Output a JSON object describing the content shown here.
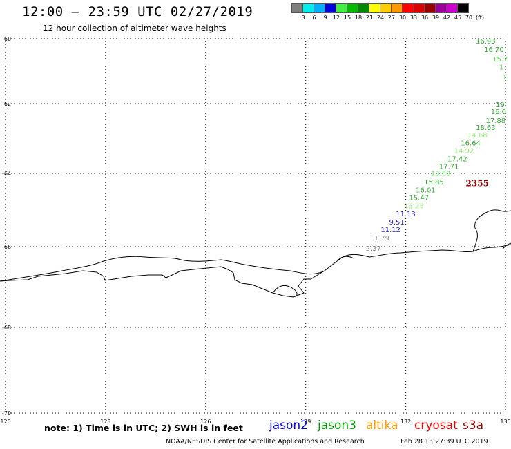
{
  "header": {
    "title": "12:00 – 23:59 UTC 02/27/2019",
    "subtitle": "12 hour collection of altimeter wave heights"
  },
  "colorbar": {
    "colors": [
      "#7f7f7f",
      "#00eeee",
      "#00b0ff",
      "#0000dd",
      "#44ee44",
      "#00bb00",
      "#008800",
      "#ffff00",
      "#ffcc00",
      "#ff9900",
      "#ff0000",
      "#dd0000",
      "#990000",
      "#990099",
      "#cc00cc",
      "#000000"
    ],
    "labels": [
      "3",
      "6",
      "9",
      "12",
      "15",
      "18",
      "21",
      "24",
      "27",
      "30",
      "33",
      "36",
      "39",
      "42",
      "45",
      "70",
      "(ft)"
    ]
  },
  "map": {
    "lat_ticks": [
      "-60",
      "-62",
      "-64",
      "-66",
      "-68",
      "-70"
    ],
    "lon_ticks": [
      "120",
      "123",
      "126",
      "129",
      "132",
      "135"
    ],
    "annotations": [
      {
        "text": "16.93",
        "lon": 134.1,
        "lat": -60.15,
        "color": "#33aa33"
      },
      {
        "text": "16.70",
        "lon": 134.35,
        "lat": -60.4,
        "color": "#33aa33"
      },
      {
        "text": "15.7",
        "lon": 134.6,
        "lat": -60.7,
        "color": "#55dd55"
      },
      {
        "text": "1",
        "lon": 134.8,
        "lat": -60.95,
        "color": "#55dd55"
      },
      {
        "text": "1",
        "lon": 134.9,
        "lat": -61.25,
        "color": "#55dd55"
      },
      {
        "text": "19",
        "lon": 134.7,
        "lat": -62.1,
        "color": "#33aa33"
      },
      {
        "text": "16.0",
        "lon": 134.55,
        "lat": -62.3,
        "color": "#33aa33"
      },
      {
        "text": "17.88",
        "lon": 134.4,
        "lat": -62.55,
        "color": "#33aa33"
      },
      {
        "text": "18.63",
        "lon": 134.1,
        "lat": -62.75,
        "color": "#33aa33"
      },
      {
        "text": "14.68",
        "lon": 133.85,
        "lat": -62.97,
        "color": "#99ee77"
      },
      {
        "text": "16.64",
        "lon": 133.65,
        "lat": -63.2,
        "color": "#33aa33"
      },
      {
        "text": "14.92",
        "lon": 133.45,
        "lat": -63.42,
        "color": "#99ee77"
      },
      {
        "text": "17.42",
        "lon": 133.25,
        "lat": -63.65,
        "color": "#33aa33"
      },
      {
        "text": "17.71",
        "lon": 133.0,
        "lat": -63.87,
        "color": "#33aa33"
      },
      {
        "text": "13.53",
        "lon": 132.75,
        "lat": -64.07,
        "color": "#55dd55"
      },
      {
        "text": "15.85",
        "lon": 132.55,
        "lat": -64.3,
        "color": "#33aa33"
      },
      {
        "text": "16.01",
        "lon": 132.3,
        "lat": -64.52,
        "color": "#33aa33"
      },
      {
        "text": "15.47",
        "lon": 132.1,
        "lat": -64.73,
        "color": "#33aa33"
      },
      {
        "text": "13.25",
        "lon": 131.95,
        "lat": -64.95,
        "color": "#99ee77"
      },
      {
        "text": "11.13",
        "lon": 131.7,
        "lat": -65.17,
        "color": "#2222cc"
      },
      {
        "text": "9.51",
        "lon": 131.5,
        "lat": -65.4,
        "color": "#2222cc"
      },
      {
        "text": "11.12",
        "lon": 131.25,
        "lat": -65.6,
        "color": "#2222cc"
      },
      {
        "text": "1.79",
        "lon": 131.05,
        "lat": -65.83,
        "color": "#888888"
      },
      {
        "text": "2.37",
        "lon": 130.8,
        "lat": -66.1,
        "color": "#888888"
      }
    ],
    "track_time": {
      "text": "2355",
      "lon": 133.8,
      "lat": -64.35,
      "color": "#990000"
    }
  },
  "footer": {
    "note": "note: 1) Time is in UTC; 2) SWH is in feet",
    "satellites": [
      {
        "name": "jason2",
        "color": "#0000cc"
      },
      {
        "name": "jason3",
        "color": "#009900"
      },
      {
        "name": "altika",
        "color": "#ff9900"
      },
      {
        "name": "cryosat",
        "color": "#ee0000"
      },
      {
        "name": "s3a",
        "color": "#990000"
      }
    ],
    "credit": "NOAA/NESDIS Center for Satellite Applications and Research",
    "timestamp": "Feb 28 13:27:39 UTC 2019"
  }
}
